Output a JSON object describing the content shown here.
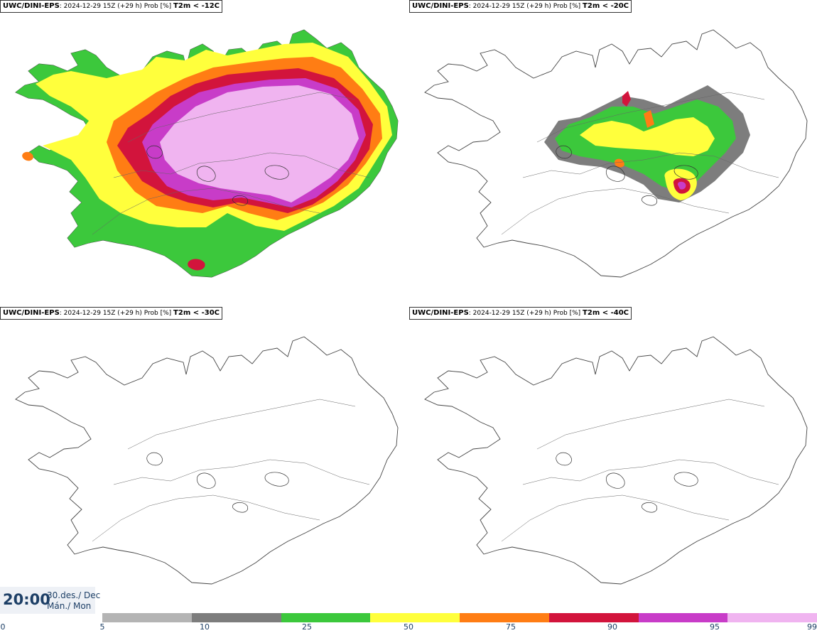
{
  "panels": [
    {
      "source": "UWC/DINI-EPS",
      "meta": ": 2024-12-29 15Z (+29 h) Prob [%]",
      "variable": "T2m < -12C",
      "coverage": "extensive"
    },
    {
      "source": "UWC/DINI-EPS",
      "meta": ": 2024-12-29 15Z (+29 h) Prob [%]",
      "variable": "T2m < -20C",
      "coverage": "moderate"
    },
    {
      "source": "UWC/DINI-EPS",
      "meta": ": 2024-12-29 15Z (+29 h) Prob [%]",
      "variable": "T2m < -30C",
      "coverage": "none"
    },
    {
      "source": "UWC/DINI-EPS",
      "meta": ": 2024-12-29 15Z (+29 h) Prob [%]",
      "variable": "T2m < -40C",
      "coverage": "none"
    }
  ],
  "time": {
    "clock": "20:00",
    "date": "30.des./ Dec",
    "day": "Mán./ Mon"
  },
  "legend": {
    "ticks": [
      "0",
      "5",
      "10",
      "25",
      "50",
      "75",
      "90",
      "95",
      "99"
    ],
    "colors": [
      "#b4b4b4",
      "#7d7d7d",
      "#3cc83c",
      "#ffff3c",
      "#ff7d14",
      "#d2143c",
      "#c83cc8",
      "#f0b4f0"
    ]
  }
}
